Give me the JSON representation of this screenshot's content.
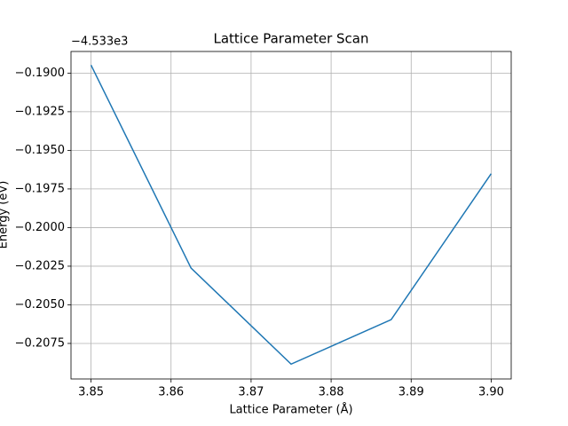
{
  "chart_data": {
    "type": "line",
    "title": "Lattice Parameter Scan",
    "x_label": "Lattice Parameter (Å)",
    "y_label": "Energy (eV)",
    "y_offset_text": "−4.533e3",
    "series": [
      {
        "name": "Energy",
        "color": "#1f77b4",
        "x": [
          3.85,
          3.8625,
          3.875,
          3.8875,
          3.9
        ],
        "values": [
          -0.18948,
          -0.20262,
          -0.20884,
          -0.20596,
          -0.19651
        ]
      }
    ],
    "xlim": [
      3.8475,
      3.9025
    ],
    "xticks": [
      3.85,
      3.86,
      3.87,
      3.88,
      3.89,
      {
        "value": 3.9,
        "label": "3.90"
      }
    ],
    "ylim": [
      -0.2098,
      -0.1886
    ],
    "yticks": [
      {
        "value": -0.19,
        "label": "−0.1900"
      },
      {
        "value": -0.1925,
        "label": "−0.1925"
      },
      {
        "value": -0.195,
        "label": "−0.1950"
      },
      {
        "value": -0.1975,
        "label": "−0.1975"
      },
      {
        "value": -0.2,
        "label": "−0.2000"
      },
      {
        "value": -0.2025,
        "label": "−0.2025"
      },
      {
        "value": -0.205,
        "label": "−0.2050"
      },
      {
        "value": -0.2075,
        "label": "−0.2075"
      }
    ],
    "grid": true
  }
}
